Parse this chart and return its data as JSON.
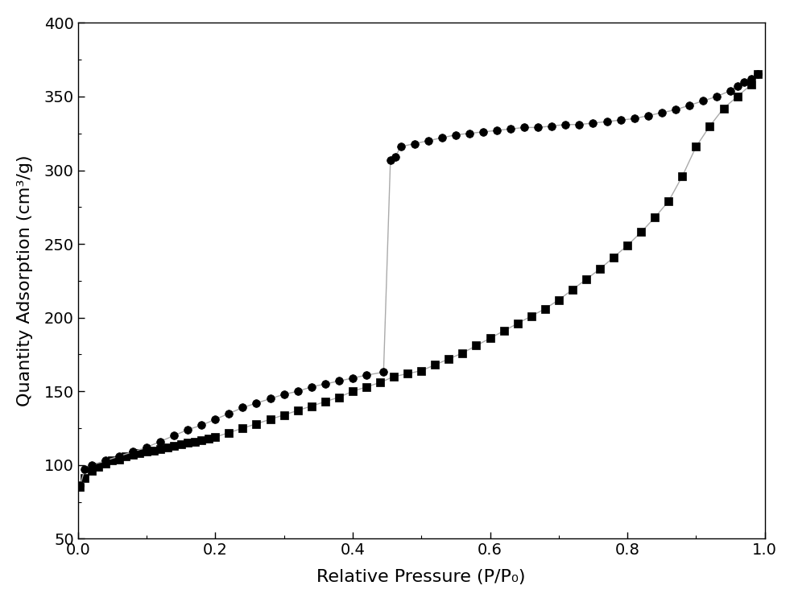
{
  "adsorption_x": [
    0.003,
    0.01,
    0.02,
    0.03,
    0.04,
    0.05,
    0.06,
    0.07,
    0.08,
    0.09,
    0.1,
    0.11,
    0.12,
    0.13,
    0.14,
    0.15,
    0.16,
    0.17,
    0.18,
    0.19,
    0.2,
    0.22,
    0.24,
    0.26,
    0.28,
    0.3,
    0.32,
    0.34,
    0.36,
    0.38,
    0.4,
    0.42,
    0.44,
    0.46,
    0.48,
    0.5,
    0.52,
    0.54,
    0.56,
    0.58,
    0.6,
    0.62,
    0.64,
    0.66,
    0.68,
    0.7,
    0.72,
    0.74,
    0.76,
    0.78,
    0.8,
    0.82,
    0.84,
    0.86,
    0.88,
    0.9,
    0.92,
    0.94,
    0.96,
    0.98,
    0.99
  ],
  "adsorption_y": [
    85,
    91,
    96,
    99,
    101,
    103,
    104,
    106,
    107,
    108,
    109,
    110,
    111,
    112,
    113,
    114,
    115,
    116,
    117,
    118,
    119,
    122,
    125,
    128,
    131,
    134,
    137,
    140,
    143,
    146,
    150,
    153,
    156,
    160,
    162,
    164,
    168,
    172,
    176,
    181,
    186,
    191,
    196,
    201,
    206,
    212,
    219,
    226,
    233,
    241,
    249,
    258,
    268,
    279,
    296,
    316,
    330,
    342,
    350,
    358,
    365
  ],
  "desorption_x": [
    0.99,
    0.98,
    0.97,
    0.96,
    0.95,
    0.93,
    0.91,
    0.89,
    0.87,
    0.85,
    0.83,
    0.81,
    0.79,
    0.77,
    0.75,
    0.73,
    0.71,
    0.69,
    0.67,
    0.65,
    0.63,
    0.61,
    0.59,
    0.57,
    0.55,
    0.53,
    0.51,
    0.49,
    0.47,
    0.462,
    0.455,
    0.445,
    0.42,
    0.4,
    0.38,
    0.36,
    0.34,
    0.32,
    0.3,
    0.28,
    0.26,
    0.24,
    0.22,
    0.2,
    0.18,
    0.16,
    0.14,
    0.12,
    0.1,
    0.08,
    0.06,
    0.04,
    0.02,
    0.01,
    0.003
  ],
  "desorption_y": [
    365,
    362,
    360,
    357,
    354,
    350,
    347,
    344,
    341,
    339,
    337,
    335,
    334,
    333,
    332,
    331,
    331,
    330,
    329,
    329,
    328,
    327,
    326,
    325,
    324,
    322,
    320,
    318,
    316,
    309,
    307,
    163,
    161,
    159,
    157,
    155,
    153,
    150,
    148,
    145,
    142,
    139,
    135,
    131,
    127,
    124,
    120,
    116,
    112,
    109,
    106,
    103,
    100,
    97,
    86
  ],
  "xlabel": "Relative Pressure (P/P₀)",
  "ylabel": "Quantity Adsorption (cm³/g)",
  "xlim": [
    0.0,
    1.0
  ],
  "ylim": [
    50,
    400
  ],
  "xticks": [
    0.0,
    0.2,
    0.4,
    0.6,
    0.8,
    1.0
  ],
  "yticks": [
    50,
    100,
    150,
    200,
    250,
    300,
    350,
    400
  ],
  "line_color": "#aaaaaa",
  "marker_color": "#000000",
  "adsorption_marker": "s",
  "desorption_marker": "o",
  "marker_size": 7,
  "linewidth": 1.0,
  "background_color": "#ffffff",
  "figure_background": "#ffffff"
}
